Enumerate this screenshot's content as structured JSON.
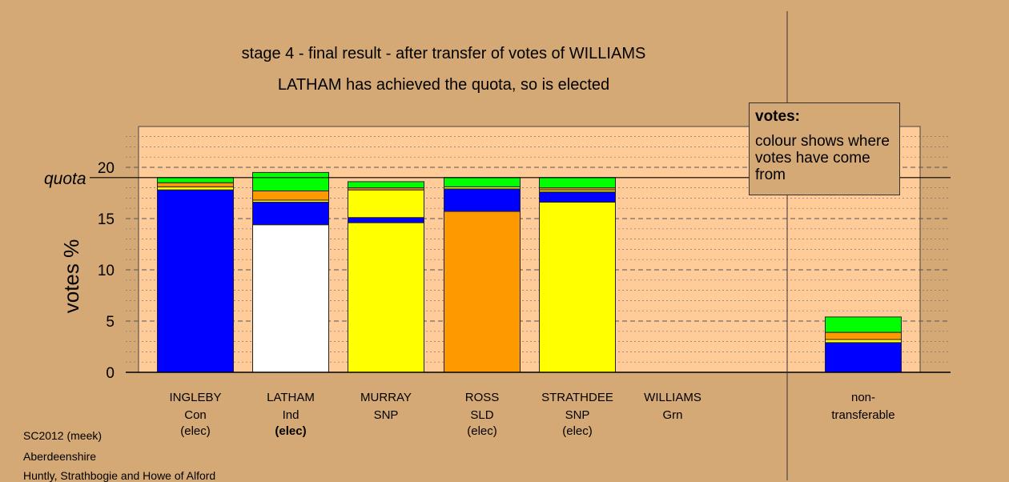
{
  "chart_data": {
    "type": "bar",
    "stacked": true,
    "title": "stage 4 - final result - after transfer of votes of WILLIAMS",
    "subtitle": "LATHAM has achieved the quota, so is elected",
    "ylabel": "votes %",
    "ylim": [
      0,
      24
    ],
    "yticks": [
      0,
      5,
      10,
      15,
      20
    ],
    "grid": true,
    "quota": 19.0,
    "quota_label": "quota",
    "legend": {
      "title": "votes:",
      "text": "colour shows where votes have come from",
      "placement": "top-right"
    },
    "candidates": [
      {
        "name": "INGLEBY",
        "party": "Con",
        "status": "(elec)",
        "status_bold": false,
        "segments": [
          {
            "color": "#0000FF",
            "value": 17.8
          },
          {
            "color": "#FFFF00",
            "value": 0.3
          },
          {
            "color": "#FF9900",
            "value": 0.4
          },
          {
            "color": "#00FF00",
            "value": 0.5
          }
        ]
      },
      {
        "name": "LATHAM",
        "party": "Ind",
        "status": "(elec)",
        "status_bold": true,
        "segments": [
          {
            "color": "#FFFFFF",
            "value": 14.4
          },
          {
            "color": "#0000FF",
            "value": 2.2
          },
          {
            "color": "#FFFF00",
            "value": 0.2
          },
          {
            "color": "#FF9900",
            "value": 0.9
          },
          {
            "color": "#00FF00",
            "value": 1.8
          }
        ]
      },
      {
        "name": "MURRAY",
        "party": "SNP",
        "status": "",
        "status_bold": false,
        "segments": [
          {
            "color": "#FFFF00",
            "value": 14.6
          },
          {
            "color": "#0000FF",
            "value": 0.5
          },
          {
            "color": "#FFFF00",
            "value": 2.7
          },
          {
            "color": "#FF9900",
            "value": 0.2
          },
          {
            "color": "#00FF00",
            "value": 0.6
          }
        ]
      },
      {
        "name": "ROSS",
        "party": "SLD",
        "status": "(elec)",
        "status_bold": false,
        "segments": [
          {
            "color": "#FF9900",
            "value": 15.7
          },
          {
            "color": "#0000FF",
            "value": 2.2
          },
          {
            "color": "#FFFF00",
            "value": 0.2
          },
          {
            "color": "#00FF00",
            "value": 0.9
          }
        ]
      },
      {
        "name": "STRATHDEE",
        "party": "SNP",
        "status": "(elec)",
        "status_bold": false,
        "segments": [
          {
            "color": "#FFFF00",
            "value": 16.6
          },
          {
            "color": "#0000FF",
            "value": 1.0
          },
          {
            "color": "#FFFF00",
            "value": 0.2
          },
          {
            "color": "#FF9900",
            "value": 0.2
          },
          {
            "color": "#00FF00",
            "value": 1.0
          }
        ]
      },
      {
        "name": "WILLIAMS",
        "party": "Grn",
        "status": "",
        "status_bold": false,
        "segments": []
      }
    ],
    "nontransferable": {
      "label_1": "non-",
      "label_2": "transferable",
      "segments": [
        {
          "color": "#0000FF",
          "value": 2.9
        },
        {
          "color": "#FFFF00",
          "value": 0.3
        },
        {
          "color": "#FF9900",
          "value": 0.7
        },
        {
          "color": "#00FF00",
          "value": 1.5
        }
      ]
    }
  },
  "footer": [
    "SC2012 (meek)",
    "Aberdeenshire",
    "Huntly, Strathbogie and Howe of Alford"
  ]
}
